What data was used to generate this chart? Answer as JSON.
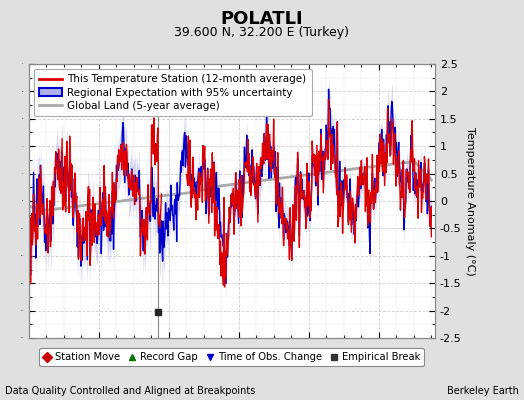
{
  "title": "POLATLI",
  "subtitle": "39.600 N, 32.200 E (Turkey)",
  "ylabel": "Temperature Anomaly (°C)",
  "xlabel_note": "Data Quality Controlled and Aligned at Breakpoints",
  "credit": "Berkeley Earth",
  "ylim": [
    -2.5,
    2.5
  ],
  "xlim": [
    1950,
    2008
  ],
  "xticks": [
    1960,
    1970,
    1980,
    1990,
    2000
  ],
  "yticks": [
    -2.5,
    -2,
    -1.5,
    -1,
    -0.5,
    0,
    0.5,
    1,
    1.5,
    2,
    2.5
  ],
  "bg_color": "#e0e0e0",
  "plot_bg_color": "#ffffff",
  "grid_color": "#bbbbbb",
  "station_color": "#dd0000",
  "regional_color": "#0000cc",
  "regional_fill_color": "#b0b0e8",
  "global_color": "#aaaaaa",
  "global_lw": 2.0,
  "empirical_break_year": 1968.5,
  "empirical_break_value": -2.02,
  "legend1_entries": [
    {
      "label": "This Temperature Station (12-month average)",
      "color": "#dd0000",
      "lw": 2
    },
    {
      "label": "Regional Expectation with 95% uncertainty",
      "color": "#0000cc",
      "lw": 2
    },
    {
      "label": "Global Land (5-year average)",
      "color": "#aaaaaa",
      "lw": 2
    }
  ],
  "legend2_entries": [
    {
      "label": "Station Move",
      "marker": "D",
      "color": "#cc0000"
    },
    {
      "label": "Record Gap",
      "marker": "^",
      "color": "#007700"
    },
    {
      "label": "Time of Obs. Change",
      "marker": "v",
      "color": "#0000cc"
    },
    {
      "label": "Empirical Break",
      "marker": "s",
      "color": "#333333"
    }
  ]
}
